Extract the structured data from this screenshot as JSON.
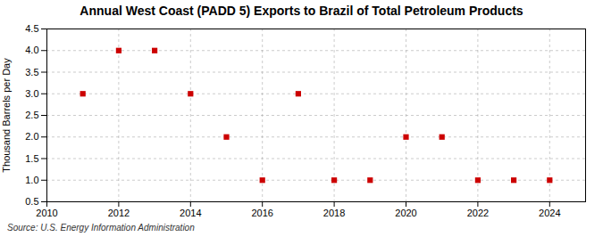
{
  "chart_data": {
    "type": "scatter",
    "title": "Annual West Coast (PADD 5) Exports to Brazil of Total Petroleum Products",
    "ylabel": "Thousand Barrels per Day",
    "source": "Source: U.S. Energy Information Administration",
    "x": [
      2011,
      2012,
      2013,
      2014,
      2015,
      2016,
      2017,
      2018,
      2019,
      2020,
      2021,
      2022,
      2023,
      2024
    ],
    "values": [
      3.0,
      4.0,
      4.0,
      3.0,
      2.0,
      1.0,
      3.0,
      1.0,
      1.0,
      2.0,
      2.0,
      1.0,
      1.0,
      1.0
    ],
    "color": "#cc0000",
    "marker": "square",
    "xlim": [
      2010,
      2025
    ],
    "ylim": [
      0.5,
      4.5
    ],
    "xticks": [
      2010,
      2012,
      2014,
      2016,
      2018,
      2020,
      2022,
      2024
    ],
    "yticks": [
      0.5,
      {
        "value": 1.0,
        "label": "1.0"
      },
      1.5,
      {
        "value": 2.0,
        "label": "2.0"
      },
      2.5,
      {
        "value": 3.0,
        "label": "3.0"
      },
      3.5,
      {
        "value": 4.0,
        "label": "4.0"
      },
      4.5
    ],
    "grid": true
  }
}
